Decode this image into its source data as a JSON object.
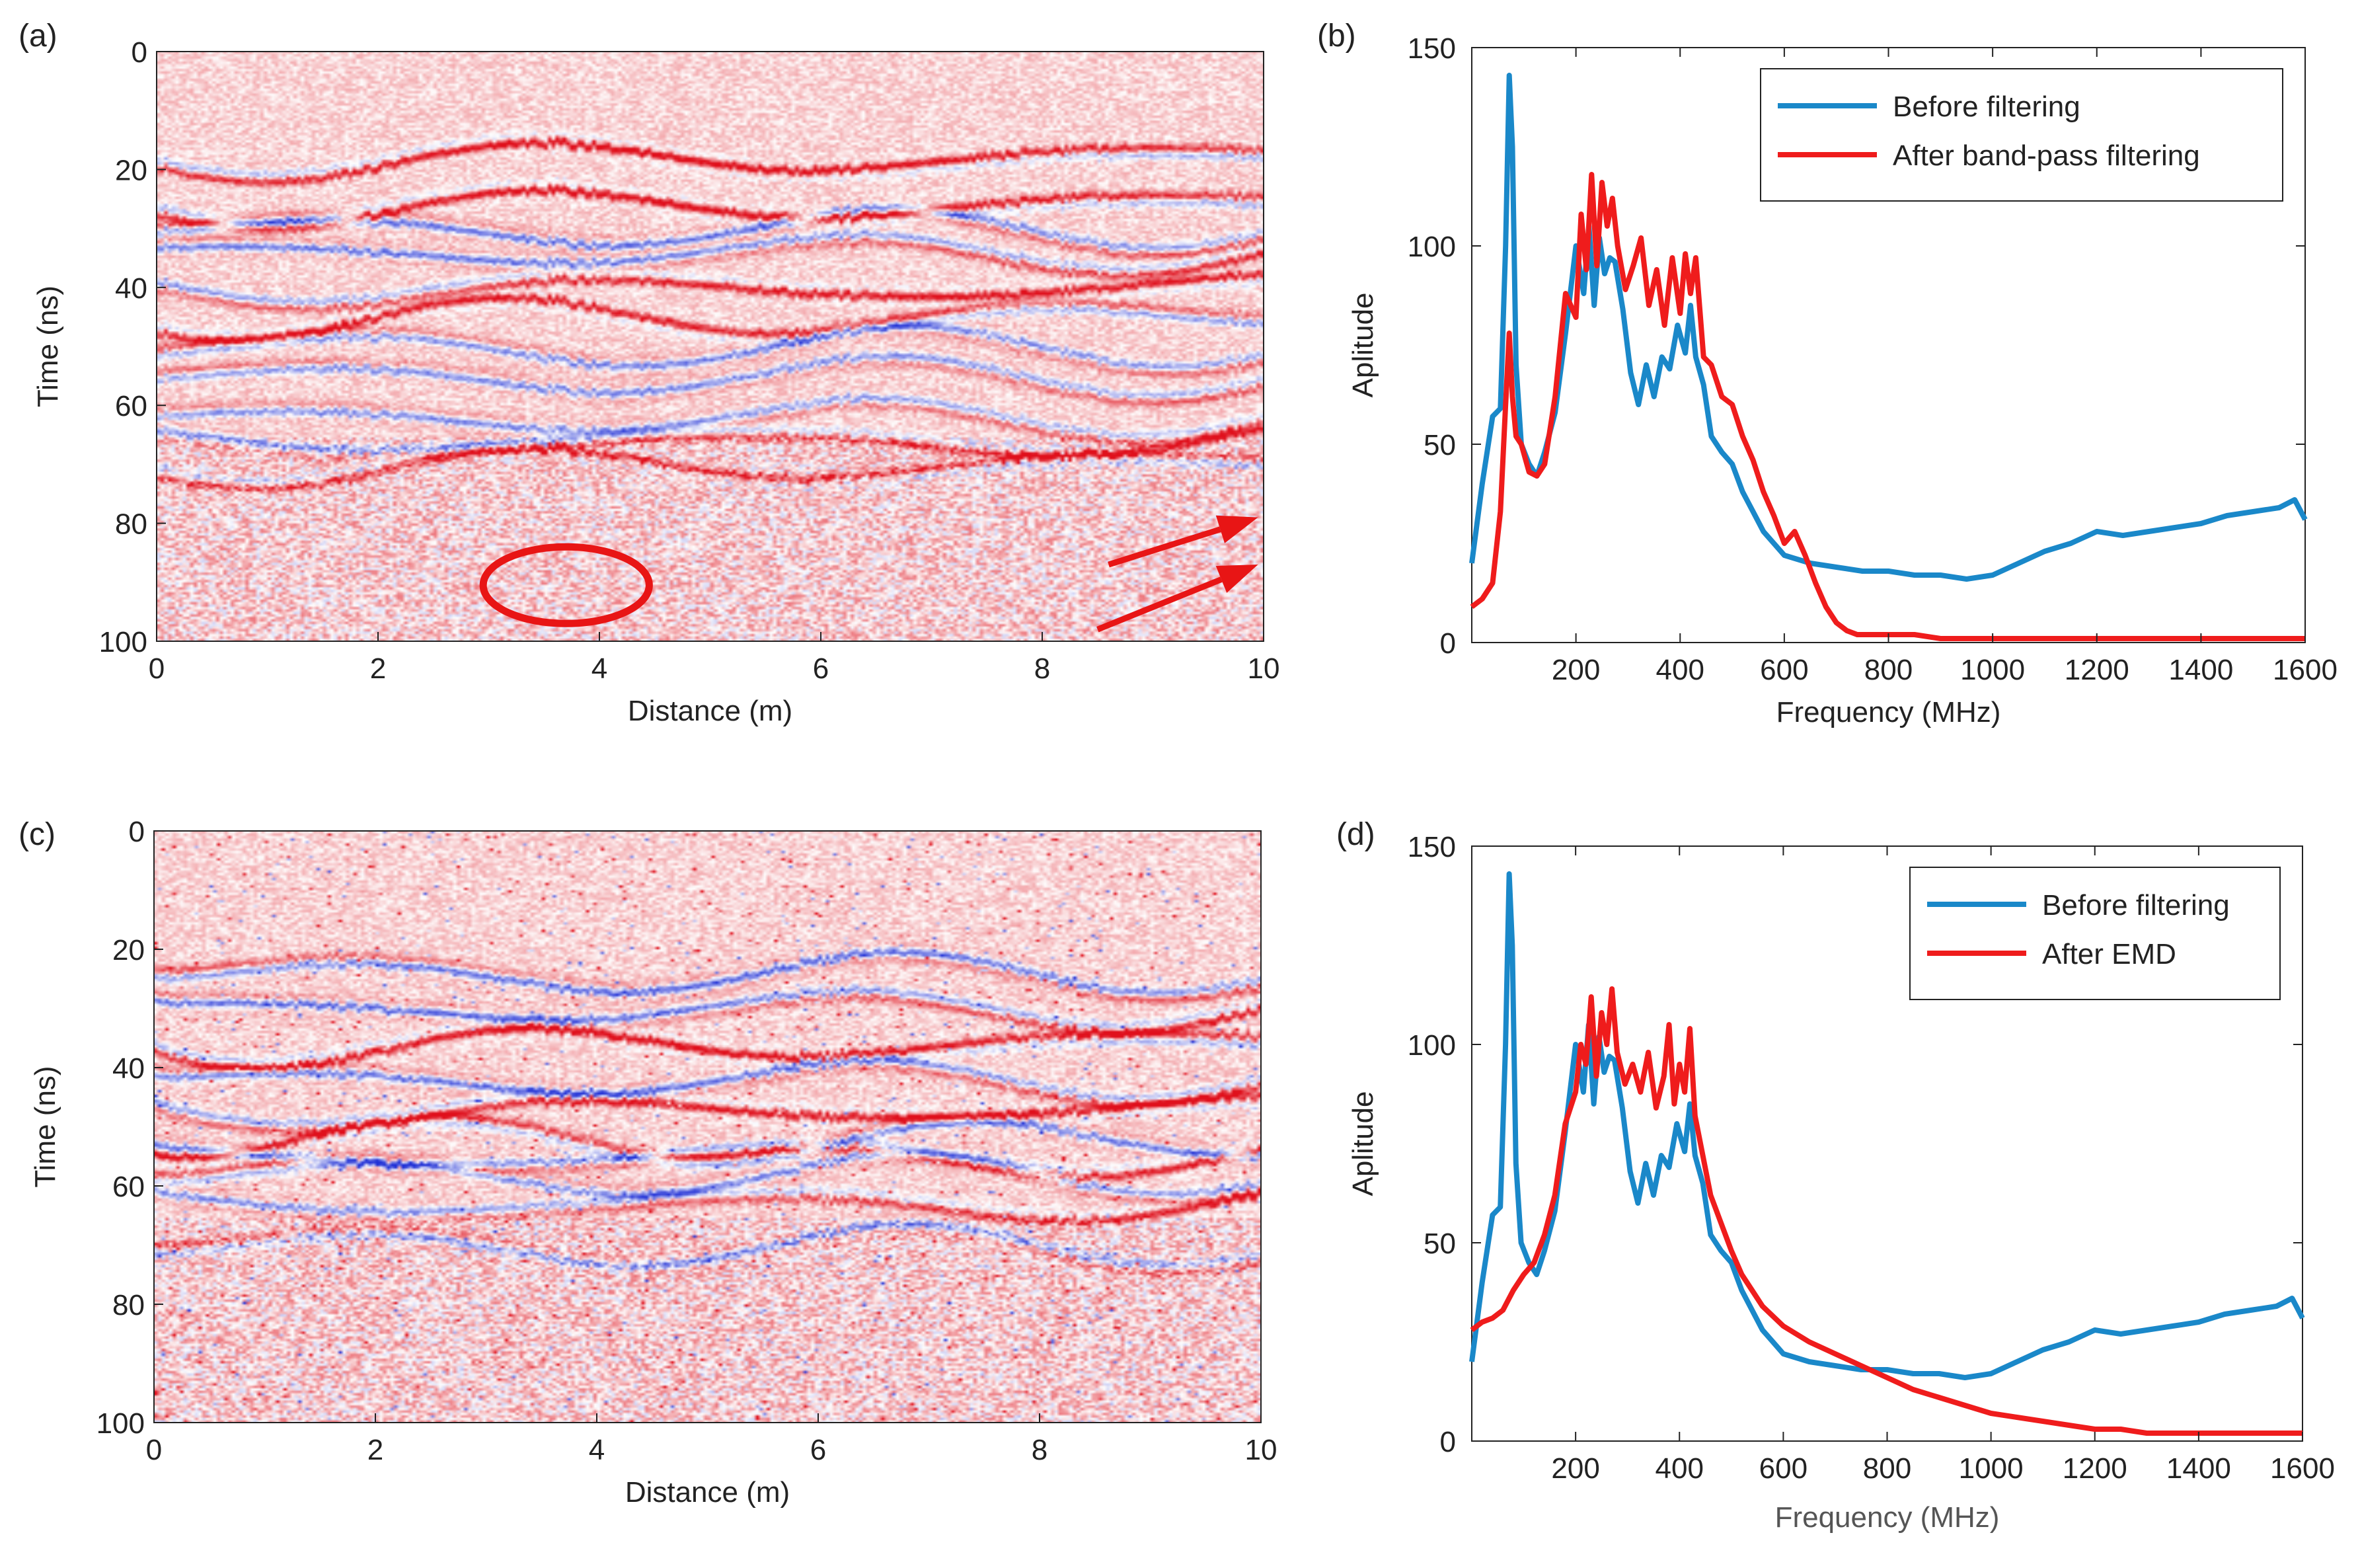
{
  "figure": {
    "panel_labels": [
      "(a)",
      "(b)",
      "(c)",
      "(d)"
    ]
  },
  "chart_data": [
    {
      "id": "a",
      "type": "heatmap",
      "title": "",
      "xlabel": "Distance (m)",
      "ylabel": "Time (ns)",
      "xlim": [
        0,
        10
      ],
      "ylim": [
        0,
        100
      ],
      "y_reversed": true,
      "xticks": [
        0,
        2,
        4,
        6,
        8,
        10
      ],
      "yticks": [
        0,
        20,
        40,
        60,
        80,
        100
      ],
      "colormap": {
        "negative": "#1f2fd6",
        "zero": "#ffffff",
        "positive": "#e0101c"
      },
      "reflectors_ns": [
        18,
        26,
        30,
        34,
        40,
        45,
        50,
        55,
        62,
        66,
        70
      ],
      "annotations": [
        {
          "type": "ellipse",
          "center": [
            3.7,
            90.5
          ],
          "radii": [
            0.75,
            6.5
          ],
          "color": "#e81515"
        },
        {
          "type": "arrow",
          "from": [
            8.6,
            87
          ],
          "to": [
            9.95,
            79
          ],
          "color": "#e81515"
        },
        {
          "type": "arrow",
          "from": [
            8.5,
            98
          ],
          "to": [
            9.95,
            87
          ],
          "color": "#e81515"
        }
      ]
    },
    {
      "id": "b",
      "type": "line",
      "title": "",
      "xlabel": "Frequency (MHz)",
      "ylabel": "Aplitude",
      "xlim": [
        0,
        1600
      ],
      "ylim": [
        0,
        150
      ],
      "xticks": [
        200,
        400,
        600,
        800,
        1000,
        1200,
        1400,
        1600
      ],
      "yticks": [
        0,
        50,
        100,
        150
      ],
      "legend_position": "top-right",
      "series": [
        {
          "name": "Before filtering",
          "color": "#1a88c9",
          "x": [
            0,
            20,
            40,
            55,
            65,
            72,
            78,
            85,
            95,
            110,
            125,
            140,
            160,
            180,
            200,
            215,
            225,
            235,
            245,
            255,
            265,
            275,
            290,
            305,
            320,
            335,
            350,
            365,
            380,
            395,
            410,
            420,
            430,
            445,
            460,
            480,
            500,
            520,
            540,
            560,
            580,
            600,
            650,
            700,
            750,
            800,
            850,
            900,
            950,
            1000,
            1050,
            1100,
            1150,
            1200,
            1250,
            1300,
            1350,
            1400,
            1450,
            1500,
            1550,
            1580,
            1600
          ],
          "y": [
            20,
            40,
            57,
            59,
            100,
            143,
            125,
            70,
            50,
            45,
            42,
            48,
            58,
            78,
            100,
            88,
            105,
            85,
            102,
            93,
            97,
            96,
            84,
            68,
            60,
            70,
            62,
            72,
            69,
            80,
            73,
            85,
            72,
            65,
            52,
            48,
            45,
            38,
            33,
            28,
            25,
            22,
            20,
            19,
            18,
            18,
            17,
            17,
            16,
            17,
            20,
            23,
            25,
            28,
            27,
            28,
            29,
            30,
            32,
            33,
            34,
            36,
            31
          ]
        },
        {
          "name": "After band-pass filtering",
          "color": "#ef1c1c",
          "x": [
            0,
            20,
            40,
            55,
            65,
            72,
            78,
            85,
            95,
            110,
            125,
            140,
            160,
            180,
            200,
            210,
            220,
            230,
            240,
            250,
            260,
            270,
            280,
            295,
            310,
            325,
            340,
            355,
            370,
            385,
            400,
            410,
            420,
            430,
            445,
            460,
            480,
            500,
            520,
            540,
            560,
            580,
            600,
            620,
            640,
            660,
            680,
            700,
            720,
            740,
            760,
            800,
            850,
            900,
            1000,
            1100,
            1200,
            1300,
            1400,
            1500,
            1600
          ],
          "y": [
            9,
            11,
            15,
            33,
            60,
            78,
            62,
            52,
            50,
            43,
            42,
            45,
            62,
            88,
            82,
            108,
            94,
            118,
            95,
            116,
            105,
            112,
            100,
            89,
            95,
            102,
            85,
            94,
            80,
            97,
            83,
            98,
            88,
            97,
            72,
            70,
            62,
            60,
            52,
            46,
            38,
            32,
            25,
            28,
            22,
            15,
            9,
            5,
            3,
            2,
            2,
            2,
            2,
            1,
            1,
            1,
            1,
            1,
            1,
            1,
            1
          ]
        }
      ]
    },
    {
      "id": "c",
      "type": "heatmap",
      "title": "",
      "xlabel": "Distance (m)",
      "ylabel": "Time (ns)",
      "xlim": [
        0,
        10
      ],
      "ylim": [
        0,
        100
      ],
      "y_reversed": true,
      "xticks": [
        0,
        2,
        4,
        6,
        8,
        10
      ],
      "yticks": [
        0,
        20,
        40,
        60,
        80,
        100
      ],
      "colormap": {
        "negative": "#1f2fd6",
        "zero": "#ffffff",
        "positive": "#e0101c"
      },
      "reflectors_ns": [
        24,
        30,
        36,
        42,
        47,
        52,
        55,
        58,
        63,
        70
      ]
    },
    {
      "id": "d",
      "type": "line",
      "title": "",
      "xlabel": "Frequency (MHz)",
      "ylabel": "Aplitude",
      "xlim": [
        0,
        1600
      ],
      "ylim": [
        0,
        150
      ],
      "xticks": [
        200,
        400,
        600,
        800,
        1000,
        1200,
        1400,
        1600
      ],
      "yticks": [
        0,
        50,
        100,
        150
      ],
      "legend_position": "top-right",
      "series": [
        {
          "name": "Before filtering",
          "color": "#1a88c9",
          "x": [
            0,
            20,
            40,
            55,
            65,
            72,
            78,
            85,
            95,
            110,
            125,
            140,
            160,
            180,
            200,
            215,
            225,
            235,
            245,
            255,
            265,
            275,
            290,
            305,
            320,
            335,
            350,
            365,
            380,
            395,
            410,
            420,
            430,
            445,
            460,
            480,
            500,
            520,
            540,
            560,
            580,
            600,
            650,
            700,
            750,
            800,
            850,
            900,
            950,
            1000,
            1050,
            1100,
            1150,
            1200,
            1250,
            1300,
            1350,
            1400,
            1450,
            1500,
            1550,
            1580,
            1600
          ],
          "y": [
            20,
            40,
            57,
            59,
            100,
            143,
            125,
            70,
            50,
            45,
            42,
            48,
            58,
            78,
            100,
            88,
            105,
            85,
            102,
            93,
            97,
            96,
            84,
            68,
            60,
            70,
            62,
            72,
            69,
            80,
            73,
            85,
            72,
            65,
            52,
            48,
            45,
            38,
            33,
            28,
            25,
            22,
            20,
            19,
            18,
            18,
            17,
            17,
            16,
            17,
            20,
            23,
            25,
            28,
            27,
            28,
            29,
            30,
            32,
            33,
            34,
            36,
            31
          ]
        },
        {
          "name": "After EMD",
          "color": "#ef1c1c",
          "x": [
            0,
            20,
            40,
            60,
            80,
            100,
            120,
            140,
            160,
            180,
            200,
            210,
            220,
            230,
            240,
            250,
            260,
            270,
            280,
            295,
            310,
            325,
            340,
            355,
            370,
            380,
            390,
            400,
            410,
            420,
            430,
            445,
            460,
            480,
            500,
            520,
            540,
            560,
            600,
            650,
            700,
            750,
            800,
            850,
            900,
            950,
            1000,
            1050,
            1100,
            1150,
            1200,
            1250,
            1300,
            1350,
            1400,
            1450,
            1500,
            1550,
            1600
          ],
          "y": [
            28,
            30,
            31,
            33,
            38,
            42,
            45,
            52,
            62,
            80,
            88,
            100,
            95,
            112,
            92,
            108,
            100,
            114,
            98,
            90,
            95,
            88,
            98,
            84,
            92,
            105,
            85,
            95,
            88,
            104,
            82,
            72,
            62,
            55,
            48,
            42,
            38,
            34,
            29,
            25,
            22,
            19,
            16,
            13,
            11,
            9,
            7,
            6,
            5,
            4,
            3,
            3,
            2,
            2,
            2,
            2,
            2,
            2,
            2
          ]
        }
      ]
    }
  ]
}
